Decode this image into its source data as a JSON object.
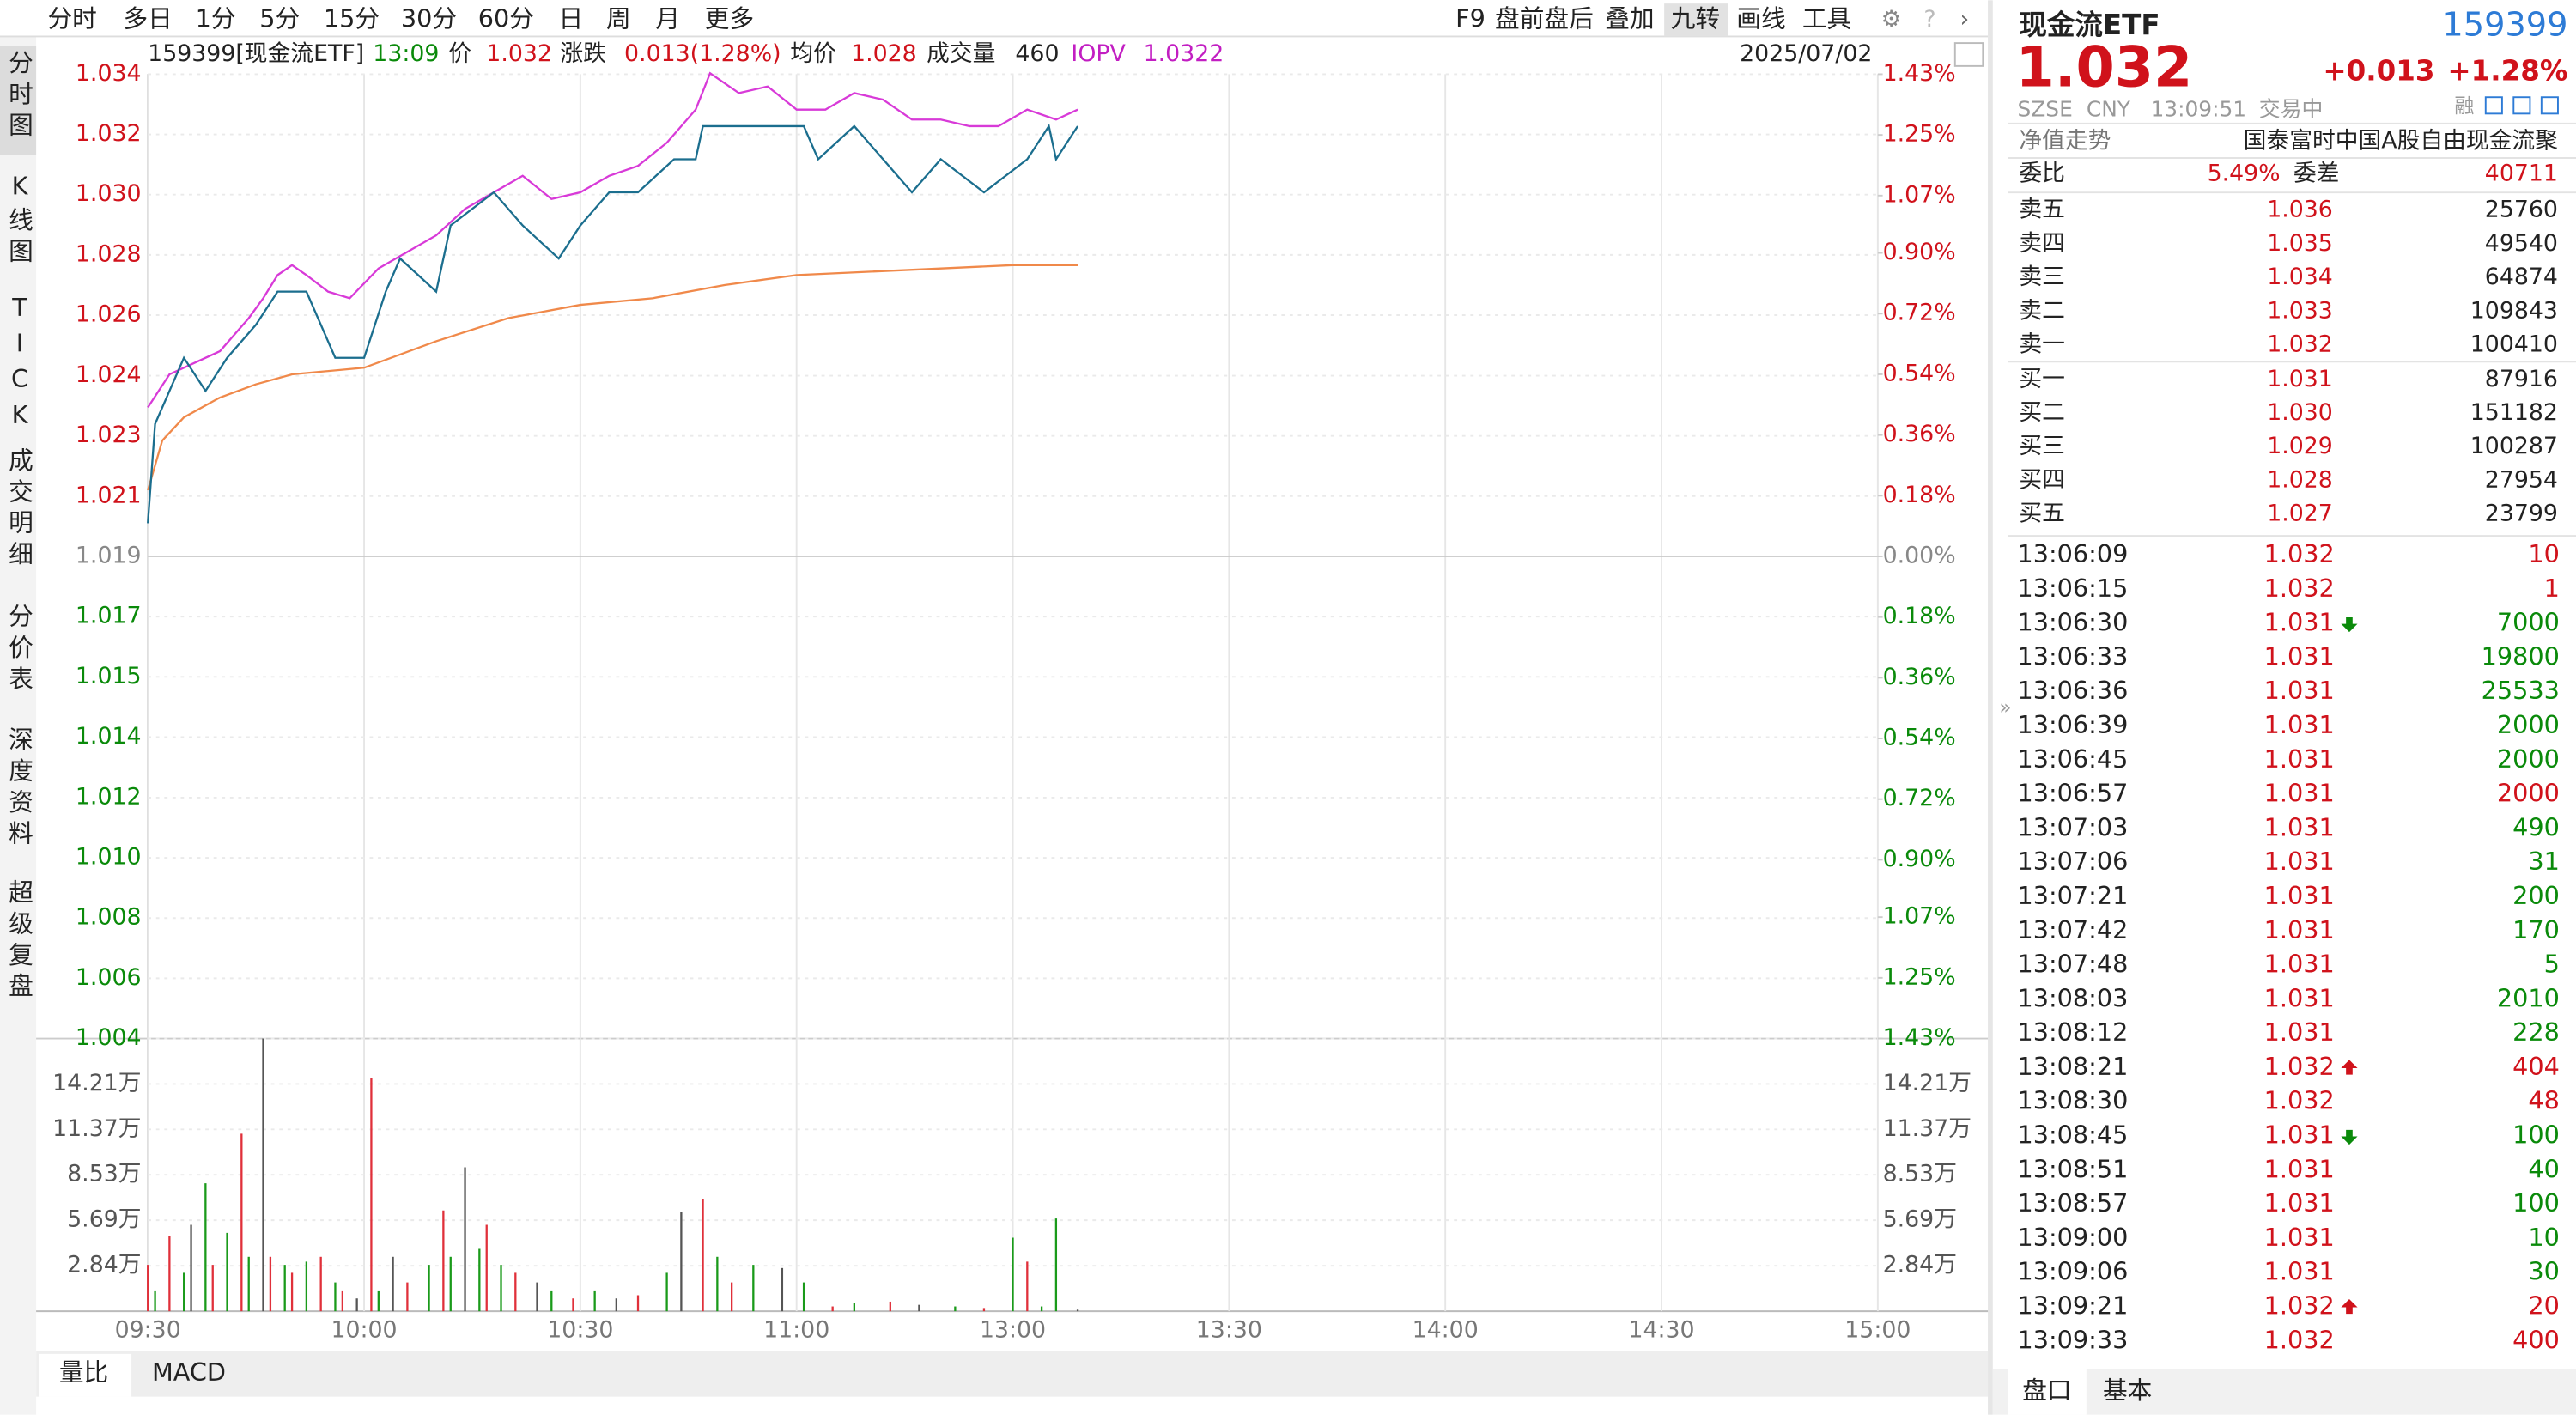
{
  "toolbar": {
    "periods": [
      "分时",
      "多日",
      "1分",
      "5分",
      "15分",
      "30分",
      "60分",
      "日",
      "周",
      "月",
      "更多"
    ],
    "tools": [
      "F9",
      "盘前盘后",
      "叠加",
      "九转",
      "画线",
      "工具"
    ]
  },
  "side_tabs": [
    "分时图",
    "K线图",
    "TICK",
    "成交明细",
    "分价表",
    "深度资料",
    "超级复盘"
  ],
  "info": {
    "code": "159399[现金流ETF]",
    "time": "13:09",
    "price_label": "价",
    "price": "1.032",
    "change_label": "涨跌",
    "change": "0.013(1.28%)",
    "avg_label": "均价",
    "avg": "1.028",
    "volume_label": "成交量",
    "volume": "460",
    "iopv_label": "IOPV",
    "iopv": "1.0322",
    "date": "2025/07/02"
  },
  "chart": {
    "type": "line",
    "xlim": [
      0,
      240
    ],
    "xticks": [
      {
        "value": 0,
        "label": "09:30"
      },
      {
        "value": 30,
        "label": "10:00"
      },
      {
        "value": 60,
        "label": "10:30"
      },
      {
        "value": 90,
        "label": "11:00"
      },
      {
        "value": 120,
        "label": "13:00"
      },
      {
        "value": 150,
        "label": "13:30"
      },
      {
        "value": 180,
        "label": "14:00"
      },
      {
        "value": 210,
        "label": "14:30"
      },
      {
        "value": 240,
        "label": "15:00"
      }
    ],
    "ylim": [
      1.00443,
      1.03357
    ],
    "yticks": [
      {
        "value": 1.03357,
        "label": "1.034"
      },
      {
        "value": 1.03175,
        "label": "1.032"
      },
      {
        "value": 1.02993,
        "label": "1.030"
      },
      {
        "value": 1.02811,
        "label": "1.028"
      },
      {
        "value": 1.02629,
        "label": "1.026"
      },
      {
        "value": 1.02446,
        "label": "1.024"
      },
      {
        "value": 1.02264,
        "label": "1.023"
      },
      {
        "value": 1.02082,
        "label": "1.021"
      },
      {
        "value": 1.019,
        "label": "1.019"
      },
      {
        "value": 1.01718,
        "label": "1.017"
      },
      {
        "value": 1.01536,
        "label": "1.015"
      },
      {
        "value": 1.01354,
        "label": "1.014"
      },
      {
        "value": 1.01171,
        "label": "1.012"
      },
      {
        "value": 1.00989,
        "label": "1.010"
      },
      {
        "value": 1.00807,
        "label": "1.008"
      },
      {
        "value": 1.00625,
        "label": "1.006"
      },
      {
        "value": 1.00443,
        "label": "1.004"
      }
    ],
    "y2lim": [
      -1.43,
      1.43
    ],
    "y2ticks": [
      {
        "value": 1.43,
        "label": "1.43%"
      },
      {
        "value": 1.25,
        "label": "1.25%"
      },
      {
        "value": 1.07,
        "label": "1.07%"
      },
      {
        "value": 0.9,
        "label": "0.90%"
      },
      {
        "value": 0.72,
        "label": "0.72%"
      },
      {
        "value": 0.54,
        "label": "0.54%"
      },
      {
        "value": 0.36,
        "label": "0.36%"
      },
      {
        "value": 0.18,
        "label": "0.18%"
      },
      {
        "value": 0,
        "label": "0.00%"
      },
      {
        "value": -0.18,
        "label": "0.18%"
      },
      {
        "value": -0.36,
        "label": "0.36%"
      },
      {
        "value": -0.54,
        "label": "0.54%"
      },
      {
        "value": -0.72,
        "label": "0.72%"
      },
      {
        "value": -0.9,
        "label": "0.90%"
      },
      {
        "value": -1.07,
        "label": "1.07%"
      },
      {
        "value": -1.25,
        "label": "1.25%"
      },
      {
        "value": -1.43,
        "label": "1.43%"
      }
    ],
    "series": [
      {
        "color": "#d83ad8",
        "x": [
          0,
          3,
          6,
          10,
          14,
          16,
          18,
          20,
          22,
          25,
          28,
          32,
          36,
          40,
          44,
          48,
          52,
          56,
          60,
          64,
          68,
          72,
          76,
          78,
          82,
          86,
          90,
          94,
          98,
          102,
          106,
          110,
          114,
          118,
          122,
          126,
          129
        ],
        "values": [
          1.0235,
          1.0245,
          1.0248,
          1.0252,
          1.0262,
          1.0268,
          1.0275,
          1.0278,
          1.0275,
          1.027,
          1.0268,
          1.0277,
          1.0282,
          1.0287,
          1.0295,
          1.03,
          1.0305,
          1.0298,
          1.03,
          1.0305,
          1.0308,
          1.0315,
          1.0325,
          1.0336,
          1.033,
          1.0332,
          1.0325,
          1.0325,
          1.033,
          1.0328,
          1.0322,
          1.0322,
          1.032,
          1.032,
          1.0325,
          1.0322,
          1.0325
        ]
      },
      {
        "color": "#f0894a",
        "x": [
          0,
          2,
          5,
          10,
          15,
          20,
          30,
          40,
          50,
          60,
          70,
          80,
          90,
          100,
          110,
          120,
          129
        ],
        "values": [
          1.021,
          1.0225,
          1.0232,
          1.0238,
          1.0242,
          1.0245,
          1.0247,
          1.0255,
          1.0262,
          1.0266,
          1.0268,
          1.0272,
          1.0275,
          1.0276,
          1.0277,
          1.0278,
          1.0278
        ]
      },
      {
        "color": "#1b6e8e",
        "x": [
          0,
          1,
          3,
          5,
          8,
          11,
          15,
          18,
          22,
          26,
          30,
          33,
          35,
          40,
          42,
          48,
          52,
          57,
          60,
          64,
          68,
          73,
          76,
          77,
          91,
          93,
          98,
          106,
          110,
          116,
          122,
          125,
          126,
          129
        ],
        "values": [
          1.02,
          1.023,
          1.024,
          1.025,
          1.024,
          1.025,
          1.026,
          1.027,
          1.027,
          1.025,
          1.025,
          1.027,
          1.028,
          1.027,
          1.029,
          1.03,
          1.029,
          1.028,
          1.029,
          1.03,
          1.03,
          1.031,
          1.031,
          1.032,
          1.032,
          1.031,
          1.032,
          1.03,
          1.031,
          1.03,
          1.031,
          1.032,
          1.031,
          1.032
        ]
      }
    ],
    "volume": {
      "ylim": [
        0,
        17.05
      ],
      "yticks": [
        {
          "value": 14.21,
          "label": "14.21万"
        },
        {
          "value": 11.37,
          "label": "11.37万"
        },
        {
          "value": 8.53,
          "label": "8.53万"
        },
        {
          "value": 5.69,
          "label": "5.69万"
        },
        {
          "value": 2.84,
          "label": "2.84万"
        }
      ],
      "series": [
        {
          "color": "#e0303a",
          "x": [
            0,
            3,
            9,
            13,
            17,
            20,
            24,
            27,
            31,
            36,
            41,
            47,
            51,
            59,
            68,
            77,
            81,
            95,
            103,
            116,
            122
          ],
          "values": [
            2.9,
            4.7,
            2.9,
            11.1,
            3.4,
            2.4,
            3.4,
            1.3,
            14.6,
            1.8,
            6.3,
            5.4,
            2.4,
            0.8,
            1.0,
            7.0,
            1.8,
            0.3,
            0.6,
            0.2,
            3.1
          ]
        },
        {
          "color": "#1a9a1a",
          "x": [
            1,
            5,
            8,
            11,
            14,
            19,
            22,
            26,
            32,
            39,
            42,
            46,
            49,
            56,
            62,
            72,
            79,
            84,
            91,
            98,
            112,
            120,
            124,
            126
          ],
          "values": [
            1.3,
            2.4,
            8.0,
            4.9,
            3.4,
            2.9,
            3.1,
            1.8,
            1.3,
            2.9,
            3.4,
            3.9,
            2.9,
            1.3,
            1.3,
            2.4,
            3.4,
            2.9,
            1.8,
            0.5,
            0.3,
            4.6,
            0.3,
            5.8
          ]
        },
        {
          "color": "#555555",
          "x": [
            6,
            16,
            29,
            34,
            44,
            54,
            65,
            74,
            88,
            107,
            129
          ],
          "values": [
            5.4,
            17.05,
            0.8,
            3.4,
            9.0,
            1.8,
            0.8,
            6.2,
            2.7,
            0.4,
            0.1
          ]
        }
      ]
    }
  },
  "bottom_tabs": [
    "量比",
    "MACD"
  ],
  "quote": {
    "name": "现金流ETF",
    "code": "159399",
    "price": "1.032",
    "change": "+0.013",
    "change_pct": "+1.28%",
    "status": [
      "SZSE",
      "CNY",
      "13:09:51",
      "交易中"
    ],
    "margin": "融",
    "nav_label": "净值走势",
    "fund_name": "国泰富时中国A股自由现金流聚",
    "ratio_label": "委比",
    "ratio": "5.49%",
    "diff_label": "委差",
    "diff": "40711",
    "asks": [
      {
        "label": "卖五",
        "price": "1.036",
        "volume": "25760"
      },
      {
        "label": "卖四",
        "price": "1.035",
        "volume": "49540"
      },
      {
        "label": "卖三",
        "price": "1.034",
        "volume": "64874"
      },
      {
        "label": "卖二",
        "price": "1.033",
        "volume": "109843"
      },
      {
        "label": "卖一",
        "price": "1.032",
        "volume": "100410"
      }
    ],
    "bids": [
      {
        "label": "买一",
        "price": "1.031",
        "volume": "87916"
      },
      {
        "label": "买二",
        "price": "1.030",
        "volume": "151182"
      },
      {
        "label": "买三",
        "price": "1.029",
        "volume": "100287"
      },
      {
        "label": "买四",
        "price": "1.028",
        "volume": "27954"
      },
      {
        "label": "买五",
        "price": "1.027",
        "volume": "23799"
      }
    ],
    "trades": [
      {
        "time": "13:06:09",
        "price": "1.032",
        "volume": "10",
        "color": "#d0121b"
      },
      {
        "time": "13:06:15",
        "price": "1.032",
        "volume": "1",
        "color": "#d0121b"
      },
      {
        "time": "13:06:30",
        "price": "1.031",
        "volume": "7000",
        "color": "#0a8a0a",
        "arrow": "down"
      },
      {
        "time": "13:06:33",
        "price": "1.031",
        "volume": "19800",
        "color": "#0a8a0a"
      },
      {
        "time": "13:06:36",
        "price": "1.031",
        "volume": "25533",
        "color": "#0a8a0a"
      },
      {
        "time": "13:06:39",
        "price": "1.031",
        "volume": "2000",
        "color": "#0a8a0a"
      },
      {
        "time": "13:06:45",
        "price": "1.031",
        "volume": "2000",
        "color": "#0a8a0a"
      },
      {
        "time": "13:06:57",
        "price": "1.031",
        "volume": "2000",
        "color": "#d0121b"
      },
      {
        "time": "13:07:03",
        "price": "1.031",
        "volume": "490",
        "color": "#0a8a0a"
      },
      {
        "time": "13:07:06",
        "price": "1.031",
        "volume": "31",
        "color": "#0a8a0a"
      },
      {
        "time": "13:07:21",
        "price": "1.031",
        "volume": "200",
        "color": "#0a8a0a"
      },
      {
        "time": "13:07:42",
        "price": "1.031",
        "volume": "170",
        "color": "#0a8a0a"
      },
      {
        "time": "13:07:48",
        "price": "1.031",
        "volume": "5",
        "color": "#0a8a0a"
      },
      {
        "time": "13:08:03",
        "price": "1.031",
        "volume": "2010",
        "color": "#0a8a0a"
      },
      {
        "time": "13:08:12",
        "price": "1.031",
        "volume": "228",
        "color": "#0a8a0a"
      },
      {
        "time": "13:08:21",
        "price": "1.032",
        "volume": "404",
        "color": "#d0121b",
        "arrow": "up"
      },
      {
        "time": "13:08:30",
        "price": "1.032",
        "volume": "48",
        "color": "#d0121b"
      },
      {
        "time": "13:08:45",
        "price": "1.031",
        "volume": "100",
        "color": "#0a8a0a",
        "arrow": "down"
      },
      {
        "time": "13:08:51",
        "price": "1.031",
        "volume": "40",
        "color": "#0a8a0a"
      },
      {
        "time": "13:08:57",
        "price": "1.031",
        "volume": "100",
        "color": "#0a8a0a"
      },
      {
        "time": "13:09:00",
        "price": "1.031",
        "volume": "10",
        "color": "#0a8a0a"
      },
      {
        "time": "13:09:06",
        "price": "1.031",
        "volume": "30",
        "color": "#0a8a0a"
      },
      {
        "time": "13:09:21",
        "price": "1.032",
        "volume": "20",
        "color": "#d0121b",
        "arrow": "up"
      },
      {
        "time": "13:09:33",
        "price": "1.032",
        "volume": "400",
        "color": "#d0121b"
      }
    ]
  },
  "panel_tabs": [
    "盘口",
    "基本"
  ]
}
